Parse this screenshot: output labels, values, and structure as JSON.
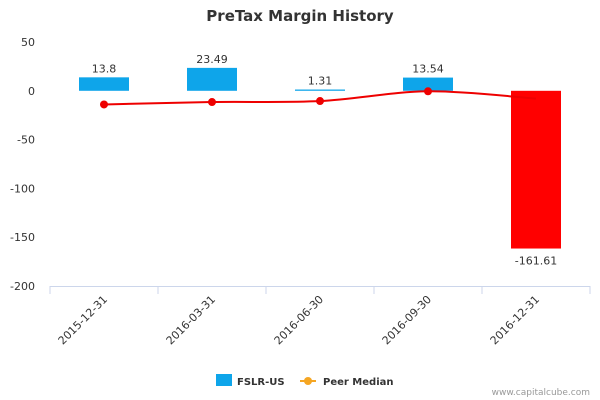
{
  "chart_data": {
    "type": "bar",
    "title": "PreTax Margin History",
    "categories": [
      "2015-12-31",
      "2016-03-31",
      "2016-06-30",
      "2016-09-30",
      "2016-12-31"
    ],
    "series": [
      {
        "name": "FSLR-US",
        "kind": "bar",
        "values": [
          13.8,
          23.49,
          1.31,
          13.54,
          -161.61
        ],
        "labels": [
          "13.8",
          "23.49",
          "1.31",
          "13.54",
          "-161.61"
        ],
        "color": "#0ea5ea",
        "negative_color": "#ff0000"
      },
      {
        "name": "Peer Median",
        "kind": "line",
        "values": [
          -14,
          -11.5,
          -10.5,
          -0.5,
          -8
        ],
        "color": "#ee0000",
        "legend_color": "#f5a623"
      }
    ],
    "ylim": [
      -200,
      50
    ],
    "yticks": [
      50,
      0,
      -50,
      -100,
      -150,
      -200
    ],
    "xlabel": "",
    "ylabel": "",
    "grid": false,
    "legend_position": "bottom-center"
  },
  "credit": "www.capitalcube.com"
}
